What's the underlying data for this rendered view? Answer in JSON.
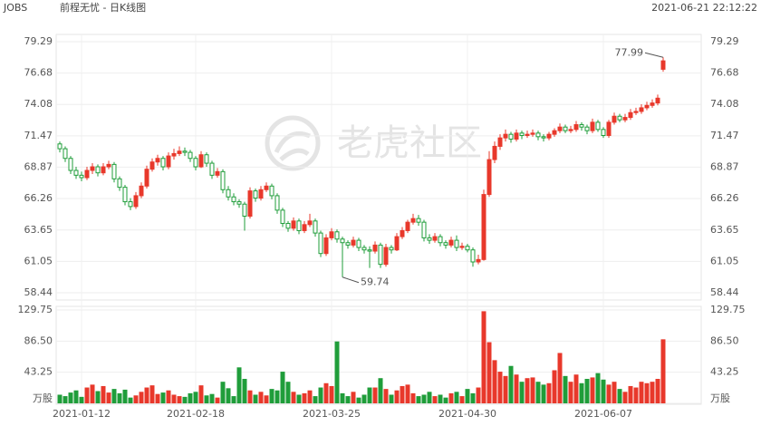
{
  "chart_data": {
    "type": "candlestick",
    "symbol": "JOBS",
    "title": "前程无忧 - 日K线图",
    "timestamp": "2021-06-21 22:12:22",
    "watermark": "老虎社区",
    "up_color": "#e8382b",
    "down_color": "#1f9d3a",
    "grid": true,
    "categories": [
      null,
      null,
      null,
      null,
      "2021-01-12",
      null,
      null,
      null,
      null,
      null,
      null,
      null,
      null,
      null,
      null,
      null,
      null,
      null,
      null,
      null,
      null,
      null,
      null,
      null,
      null,
      "2021-02-18",
      null,
      null,
      null,
      null,
      null,
      null,
      null,
      null,
      null,
      null,
      null,
      null,
      null,
      null,
      null,
      null,
      null,
      null,
      null,
      null,
      null,
      null,
      null,
      null,
      "2021-03-25",
      null,
      null,
      null,
      null,
      null,
      null,
      null,
      null,
      null,
      null,
      null,
      null,
      null,
      null,
      null,
      null,
      null,
      null,
      null,
      null,
      null,
      null,
      null,
      null,
      "2021-04-30",
      null,
      null,
      null,
      null,
      null,
      null,
      null,
      null,
      null,
      null,
      null,
      null,
      null,
      null,
      null,
      null,
      null,
      null,
      null,
      null,
      null,
      null,
      null,
      null,
      "2021-06-07",
      null,
      null,
      null,
      null,
      null,
      null,
      null,
      null,
      null,
      null,
      null
    ],
    "open": [
      70.8,
      70.4,
      69.6,
      68.6,
      68.2,
      68.0,
      68.6,
      68.9,
      68.4,
      68.9,
      69.1,
      67.9,
      67.2,
      66.0,
      65.6,
      66.5,
      67.3,
      68.7,
      69.3,
      69.6,
      68.9,
      69.8,
      70.0,
      70.2,
      70.1,
      69.6,
      68.9,
      69.9,
      69.2,
      68.2,
      68.5,
      67.0,
      66.4,
      66.0,
      65.8,
      64.8,
      66.9,
      66.3,
      67.0,
      67.3,
      66.5,
      65.3,
      64.2,
      63.8,
      64.4,
      63.6,
      64.1,
      64.4,
      63.4,
      61.7,
      63.0,
      63.5,
      62.9,
      62.6,
      62.4,
      62.8,
      62.2,
      62.0,
      61.9,
      62.4,
      60.8,
      62.2,
      62.0,
      63.1,
      63.6,
      64.3,
      64.6,
      64.3,
      63.0,
      62.8,
      63.1,
      62.6,
      62.4,
      62.8,
      62.2,
      62.3,
      62.0,
      61.0,
      61.2,
      66.6,
      69.5,
      70.6,
      71.3,
      71.6,
      71.2,
      71.7,
      71.5,
      71.6,
      71.7,
      71.4,
      71.3,
      71.6,
      71.9,
      72.2,
      71.9,
      72.0,
      72.4,
      72.2,
      71.9,
      72.6,
      72.0,
      71.5,
      72.6,
      73.1,
      72.8,
      73.0,
      73.4,
      73.5,
      73.8,
      74.0,
      74.2,
      77.0
    ],
    "high": [
      71.0,
      70.6,
      69.8,
      68.9,
      68.5,
      68.9,
      69.2,
      69.1,
      69.2,
      69.4,
      69.3,
      68.1,
      67.4,
      66.3,
      66.8,
      67.6,
      69.0,
      69.6,
      69.9,
      69.8,
      70.1,
      70.4,
      70.6,
      70.5,
      70.3,
      69.8,
      70.2,
      70.1,
      69.4,
      68.8,
      68.7,
      67.3,
      66.7,
      66.2,
      66.0,
      67.2,
      67.1,
      67.3,
      67.6,
      67.5,
      66.7,
      65.5,
      64.4,
      64.7,
      64.6,
      64.4,
      65.0,
      64.6,
      63.6,
      63.3,
      63.8,
      63.7,
      63.1,
      62.8,
      63.1,
      63.0,
      62.4,
      62.3,
      62.7,
      62.6,
      62.5,
      62.4,
      63.4,
      63.9,
      64.5,
      65.0,
      64.9,
      64.5,
      63.3,
      63.4,
      63.3,
      62.8,
      63.1,
      63.2,
      62.6,
      62.5,
      62.2,
      61.6,
      67.0,
      70.2,
      71.0,
      71.6,
      72.0,
      71.8,
      72.0,
      71.9,
      71.9,
      72.0,
      71.9,
      71.6,
      71.8,
      72.1,
      72.5,
      72.4,
      72.3,
      72.7,
      72.6,
      72.4,
      72.9,
      72.8,
      72.2,
      72.8,
      73.4,
      73.3,
      73.3,
      73.7,
      73.8,
      74.1,
      74.3,
      74.5,
      74.9,
      77.99
    ],
    "low": [
      70.1,
      69.3,
      68.3,
      67.9,
      67.7,
      67.8,
      68.3,
      68.1,
      68.2,
      68.7,
      67.6,
      66.9,
      65.7,
      65.3,
      65.4,
      66.3,
      67.1,
      68.5,
      69.0,
      68.6,
      68.7,
      69.5,
      69.8,
      69.8,
      69.3,
      68.6,
      68.8,
      68.9,
      67.9,
      68.0,
      66.7,
      66.1,
      65.7,
      65.5,
      63.6,
      64.6,
      66.0,
      66.1,
      66.8,
      66.2,
      65.0,
      63.9,
      63.5,
      63.6,
      63.3,
      63.4,
      63.9,
      63.1,
      61.4,
      61.5,
      62.8,
      62.6,
      59.74,
      62.1,
      62.2,
      61.9,
      61.7,
      60.5,
      61.7,
      60.5,
      60.6,
      61.7,
      61.9,
      62.9,
      63.4,
      64.1,
      64.0,
      62.7,
      62.5,
      62.6,
      62.3,
      62.1,
      62.2,
      61.9,
      62.0,
      61.8,
      60.6,
      60.8,
      61.1,
      66.4,
      69.2,
      70.3,
      71.0,
      70.9,
      71.0,
      71.2,
      71.3,
      71.4,
      71.1,
      71.0,
      71.1,
      71.4,
      71.7,
      71.7,
      71.7,
      71.8,
      71.9,
      71.6,
      71.7,
      71.8,
      71.3,
      71.3,
      72.4,
      72.6,
      72.6,
      72.8,
      73.2,
      73.3,
      73.6,
      73.8,
      74.0,
      76.8
    ],
    "close": [
      70.4,
      69.6,
      68.6,
      68.2,
      68.0,
      68.6,
      68.9,
      68.4,
      68.9,
      69.1,
      67.9,
      67.2,
      66.0,
      65.6,
      66.5,
      67.3,
      68.7,
      69.3,
      69.6,
      68.9,
      69.8,
      70.0,
      70.2,
      70.1,
      69.6,
      68.9,
      69.9,
      69.2,
      68.2,
      68.5,
      67.0,
      66.4,
      66.0,
      65.8,
      64.8,
      66.9,
      66.3,
      67.0,
      67.3,
      66.5,
      65.3,
      64.2,
      63.8,
      64.4,
      63.6,
      64.1,
      64.4,
      63.4,
      61.7,
      63.0,
      63.5,
      62.9,
      62.6,
      62.4,
      62.8,
      62.2,
      62.0,
      61.9,
      62.4,
      60.8,
      62.2,
      62.0,
      63.1,
      63.6,
      64.3,
      64.6,
      64.3,
      63.0,
      62.8,
      63.1,
      62.6,
      62.4,
      62.8,
      62.2,
      62.3,
      62.0,
      61.0,
      61.2,
      66.6,
      69.5,
      70.6,
      71.3,
      71.6,
      71.2,
      71.7,
      71.5,
      71.6,
      71.7,
      71.4,
      71.3,
      71.6,
      71.9,
      72.2,
      71.9,
      72.0,
      72.4,
      72.2,
      71.9,
      72.6,
      72.0,
      71.5,
      72.6,
      73.1,
      72.8,
      73.0,
      73.4,
      73.5,
      73.8,
      74.0,
      74.2,
      74.6,
      77.7
    ],
    "volume": [
      12,
      10,
      15,
      18,
      9,
      22,
      26,
      17,
      24,
      15,
      20,
      14,
      19,
      8,
      11,
      16,
      22,
      25,
      13,
      15,
      18,
      12,
      10,
      9,
      14,
      16,
      25,
      11,
      13,
      8,
      30,
      21,
      10,
      50,
      34,
      18,
      12,
      16,
      11,
      20,
      18,
      44,
      30,
      16,
      12,
      14,
      18,
      10,
      22,
      28,
      24,
      86,
      14,
      10,
      16,
      8,
      12,
      22,
      22,
      35,
      20,
      12,
      18,
      24,
      26,
      14,
      10,
      12,
      16,
      10,
      12,
      8,
      14,
      16,
      10,
      20,
      14,
      22,
      128,
      85,
      60,
      44,
      38,
      52,
      40,
      30,
      35,
      36,
      30,
      26,
      28,
      46,
      70,
      38,
      30,
      40,
      28,
      34,
      36,
      42,
      33,
      26,
      30,
      20,
      16,
      24,
      22,
      30,
      28,
      30,
      34,
      89
    ],
    "ylim": [
      58.44,
      79.29
    ],
    "yticks": [
      79.29,
      76.68,
      74.08,
      71.47,
      68.87,
      66.26,
      63.65,
      61.05,
      58.44
    ],
    "y2lim": [
      0,
      129.75
    ],
    "y2ticks": [
      129.75,
      {
        "value": 86.5,
        "label": "86.50"
      },
      43.25,
      {
        "value": 0,
        "label": "万股"
      }
    ]
  }
}
